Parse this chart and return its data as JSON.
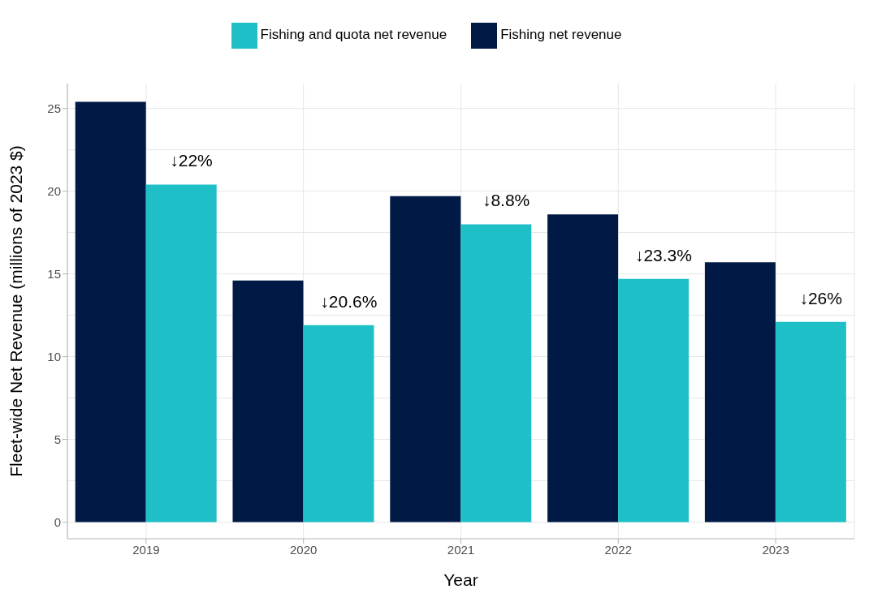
{
  "chart_data": {
    "type": "bar",
    "xlabel": "Year",
    "ylabel": "Fleet-wide Net Revenue (millions of 2023 $)",
    "categories": [
      "2019",
      "2020",
      "2021",
      "2022",
      "2023"
    ],
    "series": [
      {
        "name": "Fishing net revenue",
        "color": "#001a45",
        "values": [
          25.4,
          14.6,
          19.7,
          18.6,
          15.7
        ]
      },
      {
        "name": "Fishing and quota net revenue",
        "color": "#1fbfc8",
        "values": [
          20.4,
          11.9,
          18.0,
          14.7,
          12.1
        ]
      }
    ],
    "ylim": [
      -1,
      26.5
    ],
    "yticks": [
      0,
      5,
      10,
      15,
      20,
      25
    ],
    "grid": true,
    "legend": "top",
    "annotations": [
      {
        "text": "↓22%",
        "x": "2019",
        "y": 20.4
      },
      {
        "text": "↓20.6%",
        "x": "2020",
        "y": 11.9
      },
      {
        "text": "↓8.8%",
        "x": "2021",
        "y": 18.0
      },
      {
        "text": "↓23.3%",
        "x": "2022",
        "y": 14.7
      },
      {
        "text": "↓26%",
        "x": "2023",
        "y": 12.1
      }
    ]
  }
}
